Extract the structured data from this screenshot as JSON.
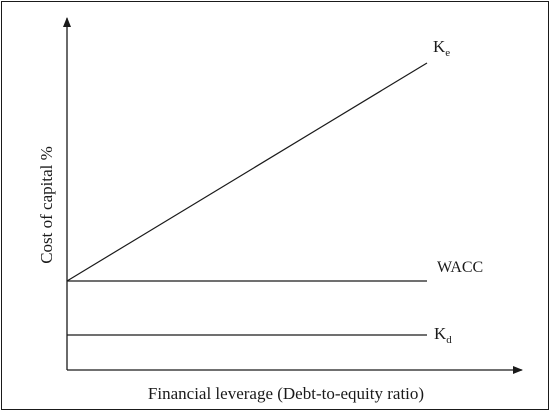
{
  "diagram": {
    "y_axis_label": "Cost of capital %",
    "x_axis_label": "Financial leverage (Debt-to-equity ratio)",
    "lines": {
      "ke": {
        "label_main": "K",
        "label_sub": "e"
      },
      "wacc": {
        "label": "WACC"
      },
      "kd": {
        "label_main": "K",
        "label_sub": "d"
      }
    },
    "stroke_color": "#1a1a1a"
  }
}
